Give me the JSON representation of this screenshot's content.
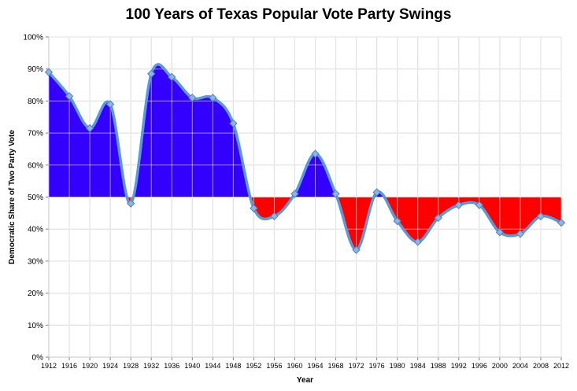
{
  "chart_data": {
    "type": "line",
    "title": "100 Years of Texas Popular Vote Party Swings",
    "xlabel": "Year",
    "ylabel": "Democratic Share of Two Party Vote",
    "ylim": [
      0,
      100
    ],
    "y_ticks": [
      "0%",
      "10%",
      "20%",
      "30%",
      "40%",
      "50%",
      "60%",
      "70%",
      "80%",
      "90%",
      "100%"
    ],
    "x_ticks": [
      "1912",
      "1916",
      "1920",
      "1924",
      "1928",
      "1932",
      "1936",
      "1940",
      "1944",
      "1948",
      "1952",
      "1956",
      "1960",
      "1964",
      "1968",
      "1972",
      "1976",
      "1980",
      "1984",
      "1988",
      "1992",
      "1996",
      "2000",
      "2004",
      "2008",
      "2012"
    ],
    "grid": true,
    "baseline": 50,
    "colors": {
      "line": "#5b9bd5",
      "marker": "#8db4e2",
      "above": "#3300ff",
      "below": "#ff0000",
      "grid": "#bfbfbf"
    },
    "series": [
      {
        "x": [
          1912,
          1916,
          1920,
          1924,
          1928,
          1932,
          1936,
          1940,
          1944,
          1948,
          1952,
          1956,
          1960,
          1964,
          1968,
          1972,
          1976,
          1980,
          1984,
          1988,
          1992,
          1996,
          2000,
          2004,
          2008,
          2012
        ],
        "values": [
          89,
          81.5,
          71.5,
          79,
          48,
          88.5,
          87.5,
          81,
          81,
          73,
          46.5,
          44,
          51,
          63.5,
          51,
          33.5,
          51.5,
          42.5,
          36,
          43.5,
          47.5,
          47.5,
          39,
          38.5,
          44,
          42
        ]
      }
    ]
  }
}
